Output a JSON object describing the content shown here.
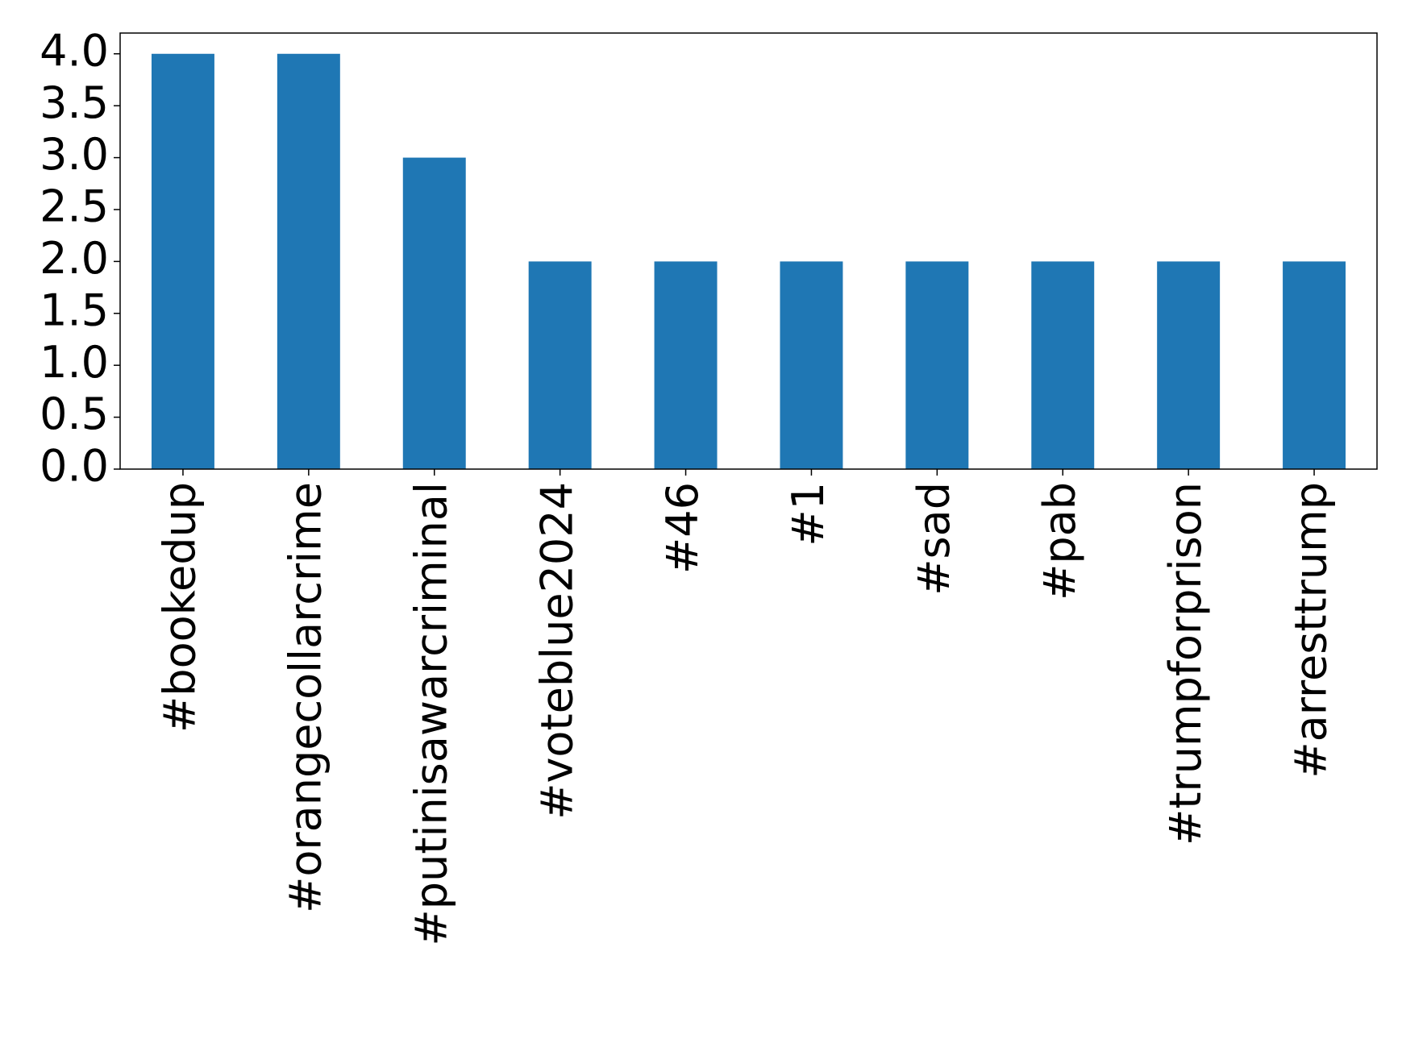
{
  "chart_data": {
    "type": "bar",
    "categories": [
      "#bookedup",
      "#orangecollarcrime",
      "#putinisawarcriminal",
      "#voteblue2024",
      "#46",
      "#1",
      "#sad",
      "#pab",
      "#trumpforprison",
      "#arresttrump"
    ],
    "values": [
      4,
      4,
      3,
      2,
      2,
      2,
      2,
      2,
      2,
      2
    ],
    "color": "#1f77b4",
    "ylim": [
      0,
      4.2
    ],
    "yticks": [
      {
        "value": 0,
        "label": "0.0"
      },
      {
        "value": 0.5,
        "label": "0.5"
      },
      {
        "value": 1,
        "label": "1.0"
      },
      {
        "value": 1.5,
        "label": "1.5"
      },
      {
        "value": 2,
        "label": "2.0"
      },
      {
        "value": 2.5,
        "label": "2.5"
      },
      {
        "value": 3,
        "label": "3.0"
      },
      {
        "value": 3.5,
        "label": "3.5"
      },
      {
        "value": 4,
        "label": "4.0"
      }
    ],
    "grid": false
  }
}
